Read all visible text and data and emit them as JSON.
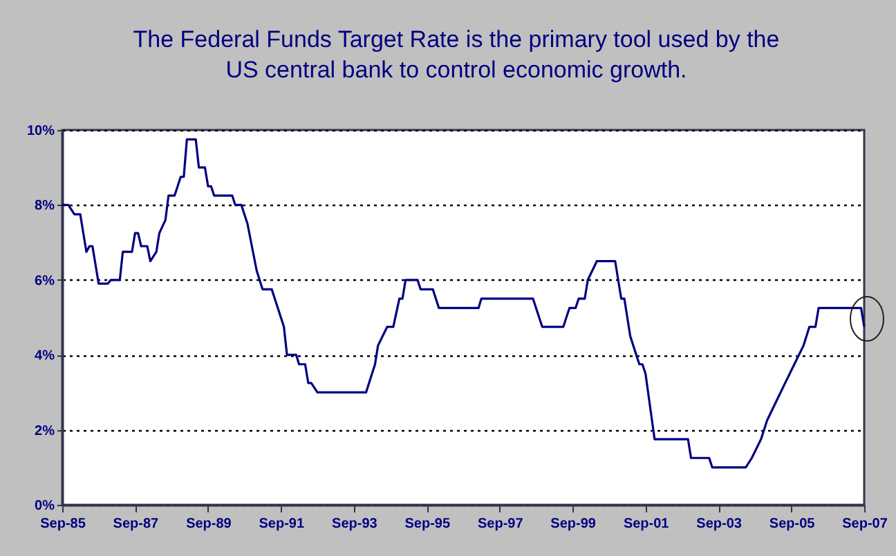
{
  "chart_data": {
    "type": "line",
    "title": "The Federal Funds Target Rate is the primary tool used by the US central bank to control economic growth.",
    "x": [
      "1985-09",
      "1985-11",
      "1986-01",
      "1986-03",
      "1986-05",
      "1986-06",
      "1986-07",
      "1986-09",
      "1986-12",
      "1987-01",
      "1987-04",
      "1987-05",
      "1987-08",
      "1987-09",
      "1987-10",
      "1987-11",
      "1988-01",
      "1988-02",
      "1988-04",
      "1988-05",
      "1988-07",
      "1988-08",
      "1988-10",
      "1988-12",
      "1989-01",
      "1989-02",
      "1989-05",
      "1989-06",
      "1989-08",
      "1989-09",
      "1989-10",
      "1989-11",
      "1990-05",
      "1990-06",
      "1990-08",
      "1990-10",
      "1991-01",
      "1991-03",
      "1991-06",
      "1991-10",
      "1991-11",
      "1992-02",
      "1992-03",
      "1992-05",
      "1992-06",
      "1992-07",
      "1992-09",
      "1994-01",
      "1994-04",
      "1994-05",
      "1994-08",
      "1994-10",
      "1994-12",
      "1995-01",
      "1995-02",
      "1995-06",
      "1995-07",
      "1995-11",
      "1996-01",
      "1997-02",
      "1997-03",
      "1998-08",
      "1998-11",
      "1999-06",
      "1999-07",
      "1999-08",
      "1999-10",
      "1999-11",
      "2000-01",
      "2000-02",
      "2000-05",
      "2000-11",
      "2001-01",
      "2001-02",
      "2001-04",
      "2001-07",
      "2001-08",
      "2001-09",
      "2001-12",
      "2002-11",
      "2002-12",
      "2003-06",
      "2003-07",
      "2004-06",
      "2004-08",
      "2004-11",
      "2005-01",
      "2005-04",
      "2005-07",
      "2005-10",
      "2006-01",
      "2006-03",
      "2006-05",
      "2006-06",
      "2007-08",
      "2007-09"
    ],
    "series": [
      {
        "color": "#000080",
        "values": [
          8.0,
          8.0,
          7.75,
          7.75,
          6.75,
          6.9,
          6.9,
          5.9,
          5.9,
          6.0,
          6.0,
          6.75,
          6.75,
          7.25,
          7.25,
          6.9,
          6.9,
          6.5,
          6.75,
          7.25,
          7.6,
          8.25,
          8.25,
          8.75,
          8.75,
          9.75,
          9.75,
          9.0,
          9.0,
          8.5,
          8.5,
          8.25,
          8.25,
          8.0,
          8.0,
          7.5,
          6.25,
          5.75,
          5.75,
          4.75,
          4.0,
          4.0,
          3.75,
          3.75,
          3.25,
          3.25,
          3.0,
          3.0,
          3.75,
          4.25,
          4.75,
          4.75,
          5.5,
          5.5,
          6.0,
          6.0,
          5.75,
          5.75,
          5.25,
          5.25,
          5.5,
          5.5,
          4.75,
          4.75,
          5.0,
          5.25,
          5.25,
          5.5,
          5.5,
          6.0,
          6.5,
          6.5,
          5.5,
          5.5,
          4.5,
          3.75,
          3.75,
          3.5,
          1.75,
          1.75,
          1.25,
          1.25,
          1.0,
          1.0,
          1.25,
          1.75,
          2.25,
          2.75,
          3.25,
          3.75,
          4.25,
          4.75,
          4.75,
          5.25,
          5.25,
          4.75
        ]
      }
    ],
    "xlim": [
      "1985-09",
      "2007-09"
    ],
    "xticks": [
      {
        "value": "1985-09",
        "label": "Sep-85"
      },
      {
        "value": "1987-09",
        "label": "Sep-87"
      },
      {
        "value": "1989-09",
        "label": "Sep-89"
      },
      {
        "value": "1991-09",
        "label": "Sep-91"
      },
      {
        "value": "1993-09",
        "label": "Sep-93"
      },
      {
        "value": "1995-09",
        "label": "Sep-95"
      },
      {
        "value": "1997-09",
        "label": "Sep-97"
      },
      {
        "value": "1999-09",
        "label": "Sep-99"
      },
      {
        "value": "2001-09",
        "label": "Sep-01"
      },
      {
        "value": "2003-09",
        "label": "Sep-03"
      },
      {
        "value": "2005-09",
        "label": "Sep-05"
      },
      {
        "value": "2007-09",
        "label": "Sep-07"
      }
    ],
    "ylim": [
      0,
      10
    ],
    "yticks": [
      {
        "value": 0,
        "label": "0%"
      },
      {
        "value": 2,
        "label": "2%"
      },
      {
        "value": 4,
        "label": "4%"
      },
      {
        "value": 6,
        "label": "6%"
      },
      {
        "value": 8,
        "label": "8%"
      },
      {
        "value": 10,
        "label": "10%"
      }
    ],
    "grid": "y",
    "line_style": "solid"
  }
}
